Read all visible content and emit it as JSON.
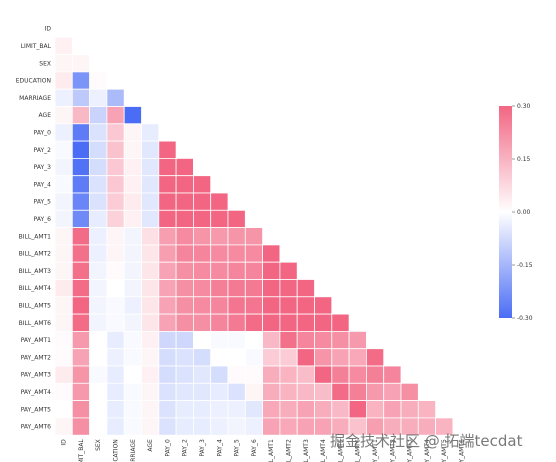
{
  "chart_data": {
    "type": "heatmap",
    "subtype": "lower-triangle correlation matrix",
    "labels": [
      "ID",
      "LIMIT_BAL",
      "SEX",
      "EDUCATION",
      "MARRIAGE",
      "AGE",
      "PAY_0",
      "PAY_2",
      "PAY_3",
      "PAY_4",
      "PAY_5",
      "PAY_6",
      "BILL_AMT1",
      "BILL_AMT2",
      "BILL_AMT3",
      "BILL_AMT4",
      "BILL_AMT5",
      "BILL_AMT6",
      "PAY_AMT1",
      "PAY_AMT2",
      "PAY_AMT3",
      "PAY_AMT4",
      "PAY_AMT5",
      "PAY_AMT6"
    ],
    "matrix": [
      [],
      [
        0.03
      ],
      [
        0.02,
        0.02
      ],
      [
        0.04,
        -0.22,
        0.01
      ],
      [
        -0.03,
        -0.11,
        -0.03,
        -0.14
      ],
      [
        0.02,
        0.14,
        -0.09,
        0.18,
        -0.41
      ],
      [
        -0.03,
        -0.27,
        -0.06,
        0.11,
        0.02,
        -0.04
      ],
      [
        -0.01,
        -0.3,
        -0.07,
        0.12,
        0.02,
        -0.05,
        0.67
      ],
      [
        -0.02,
        -0.29,
        -0.07,
        0.11,
        0.03,
        -0.05,
        0.57,
        0.77
      ],
      [
        -0.01,
        -0.27,
        -0.06,
        0.11,
        0.03,
        -0.05,
        0.54,
        0.66,
        0.78
      ],
      [
        -0.02,
        -0.25,
        -0.06,
        0.1,
        0.04,
        -0.05,
        0.51,
        0.62,
        0.69,
        0.82
      ],
      [
        -0.02,
        -0.24,
        -0.04,
        0.09,
        0.03,
        -0.05,
        0.47,
        0.58,
        0.63,
        0.72,
        0.82
      ],
      [
        0.02,
        0.29,
        -0.03,
        0.02,
        -0.02,
        0.06,
        0.19,
        0.23,
        0.21,
        0.2,
        0.21,
        0.21
      ],
      [
        0.02,
        0.28,
        -0.03,
        0.02,
        -0.02,
        0.05,
        0.19,
        0.24,
        0.24,
        0.23,
        0.23,
        0.23,
        0.95
      ],
      [
        0.02,
        0.28,
        -0.02,
        0.01,
        -0.02,
        0.05,
        0.18,
        0.22,
        0.23,
        0.23,
        0.24,
        0.24,
        0.89,
        0.93
      ],
      [
        0.04,
        0.29,
        -0.02,
        -0.0,
        -0.02,
        0.05,
        0.18,
        0.22,
        0.23,
        0.25,
        0.26,
        0.26,
        0.86,
        0.89,
        0.92
      ],
      [
        0.02,
        0.3,
        -0.02,
        -0.01,
        -0.03,
        0.05,
        0.18,
        0.22,
        0.23,
        0.24,
        0.27,
        0.27,
        0.83,
        0.86,
        0.88,
        0.94
      ],
      [
        0.02,
        0.29,
        -0.02,
        -0.01,
        -0.02,
        0.05,
        0.18,
        0.22,
        0.22,
        0.24,
        0.26,
        0.29,
        0.8,
        0.83,
        0.85,
        0.9,
        0.95
      ],
      [
        0.01,
        0.2,
        -0.0,
        -0.04,
        -0.01,
        0.03,
        -0.08,
        -0.08,
        0.0,
        -0.01,
        -0.01,
        -0.0,
        0.14,
        0.28,
        0.24,
        0.23,
        0.22,
        0.2
      ],
      [
        0.01,
        0.18,
        -0.0,
        -0.03,
        -0.01,
        0.02,
        -0.07,
        -0.06,
        -0.07,
        -0.0,
        -0.0,
        -0.01,
        0.1,
        0.1,
        0.32,
        0.21,
        0.18,
        0.17,
        0.29
      ],
      [
        0.04,
        0.21,
        -0.01,
        -0.04,
        -0.0,
        0.03,
        -0.07,
        -0.06,
        -0.05,
        -0.07,
        0.01,
        0.01,
        0.16,
        0.15,
        0.13,
        0.3,
        0.25,
        0.23,
        0.25,
        0.24
      ],
      [
        0.01,
        0.2,
        -0.0,
        -0.04,
        -0.01,
        0.02,
        -0.06,
        -0.05,
        -0.05,
        -0.04,
        -0.06,
        0.02,
        0.16,
        0.15,
        0.14,
        0.13,
        0.29,
        0.25,
        0.2,
        0.18,
        0.22
      ],
      [
        0.0,
        0.22,
        -0.0,
        -0.04,
        -0.01,
        0.02,
        -0.06,
        -0.04,
        -0.04,
        -0.03,
        -0.03,
        -0.05,
        0.17,
        0.16,
        0.18,
        0.16,
        0.14,
        0.31,
        0.15,
        0.18,
        0.16,
        0.15
      ],
      [
        0.02,
        0.22,
        -0.0,
        -0.04,
        -0.01,
        0.02,
        -0.06,
        -0.04,
        -0.04,
        -0.03,
        -0.02,
        -0.03,
        0.18,
        0.17,
        0.18,
        0.18,
        0.16,
        0.12,
        0.19,
        0.16,
        0.16,
        0.16,
        0.15
      ]
    ],
    "colorbar": {
      "min": -0.3,
      "max": 0.3,
      "ticks": [
        "0.30",
        "0.15",
        "0.00",
        "-0.15",
        "-0.30"
      ]
    },
    "colors": {
      "negative": "#4b6df5",
      "zero": "#ffffff",
      "positive": "#f26683"
    }
  },
  "watermark": "掘金技术社区 @ 拓端tecdat"
}
